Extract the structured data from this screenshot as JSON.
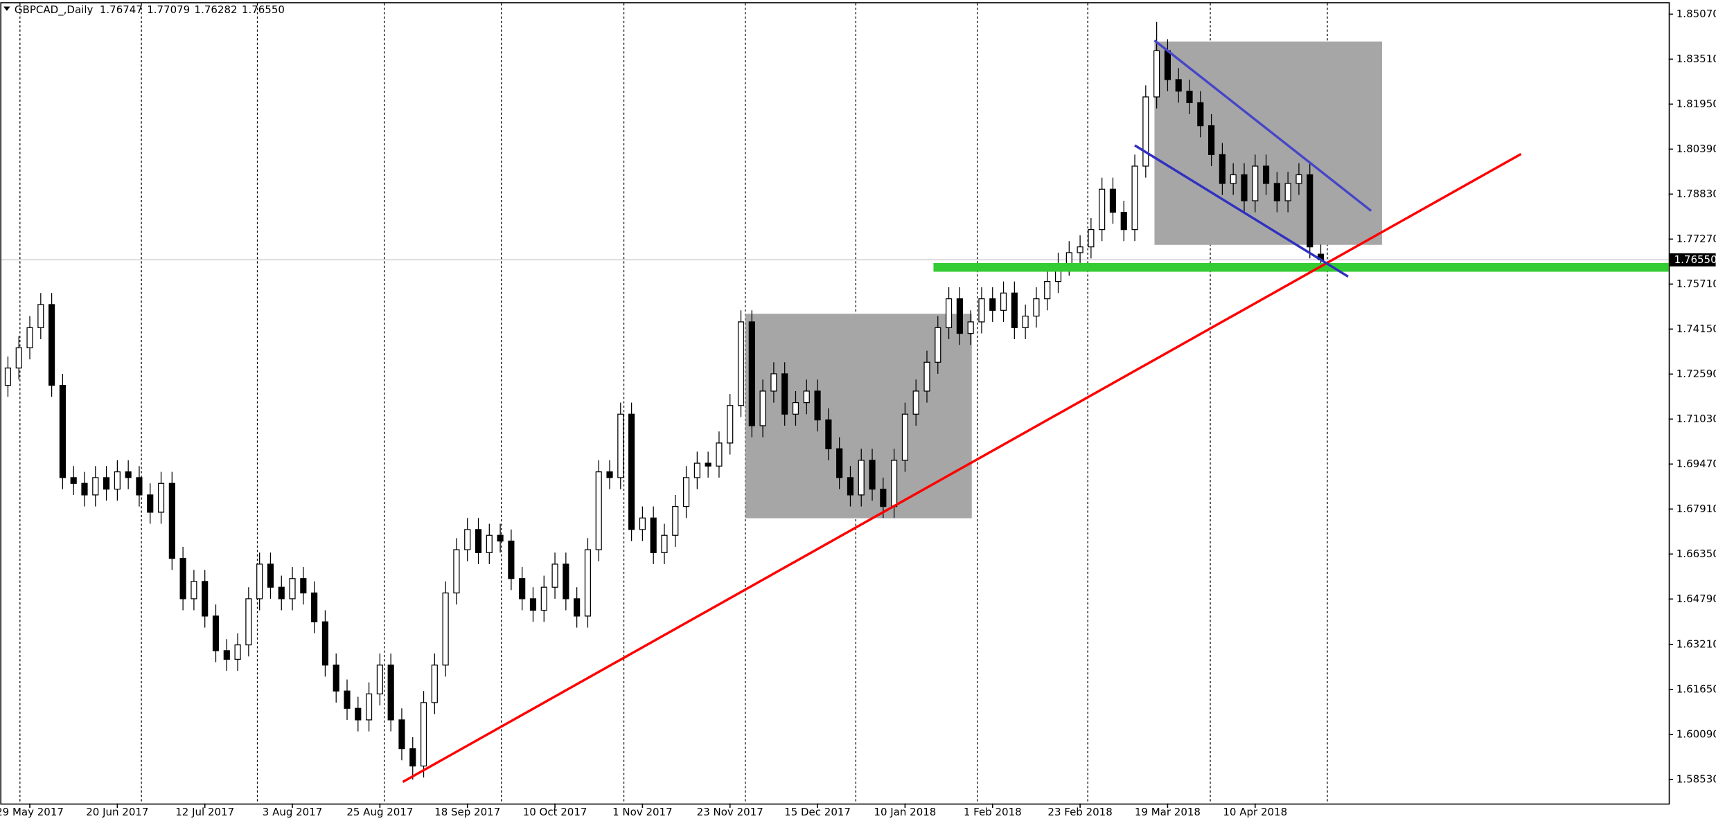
{
  "chart_data": {
    "type": "candlestick",
    "title": "GBPCAD_,Daily",
    "last_price": {
      "value": 1.7655,
      "label": "1.76550"
    },
    "ylim": [
      1.577,
      1.8556
    ],
    "yticks": [
      {
        "value": 1.8507,
        "label": "1.85070"
      },
      {
        "value": 1.8351,
        "label": "1.83510"
      },
      {
        "value": 1.8195,
        "label": "1.81950"
      },
      {
        "value": 1.8039,
        "label": "1.80390"
      },
      {
        "value": 1.7883,
        "label": "1.78830"
      },
      {
        "value": 1.7727,
        "label": "1.77270"
      },
      {
        "value": 1.7571,
        "label": "1.75710"
      },
      {
        "value": 1.7415,
        "label": "1.74150"
      },
      {
        "value": 1.7259,
        "label": "1.72590"
      },
      {
        "value": 1.7103,
        "label": "1.71030"
      },
      {
        "value": 1.6947,
        "label": "1.69470"
      },
      {
        "value": 1.6791,
        "label": "1.67910"
      },
      {
        "value": 1.6635,
        "label": "1.66350"
      },
      {
        "value": 1.6479,
        "label": "1.64790"
      },
      {
        "value": 1.6321,
        "label": "1.63210"
      },
      {
        "value": 1.6165,
        "label": "1.61650"
      },
      {
        "value": 1.6009,
        "label": "1.60090"
      },
      {
        "value": 1.5853,
        "label": "1.58530"
      }
    ],
    "categories": [
      null,
      null,
      "29 May 2017",
      null,
      null,
      null,
      null,
      null,
      null,
      null,
      "20 Jun 2017",
      null,
      null,
      null,
      null,
      null,
      null,
      null,
      "12 Jul 2017",
      null,
      null,
      null,
      null,
      null,
      null,
      null,
      "3 Aug 2017",
      null,
      null,
      null,
      null,
      null,
      null,
      null,
      "25 Aug 2017",
      null,
      null,
      null,
      null,
      null,
      null,
      null,
      "18 Sep 2017",
      null,
      null,
      null,
      null,
      null,
      null,
      null,
      "10 Oct 2017",
      null,
      null,
      null,
      null,
      null,
      null,
      null,
      "1 Nov 2017",
      null,
      null,
      null,
      null,
      null,
      null,
      null,
      "23 Nov 2017",
      null,
      null,
      null,
      null,
      null,
      null,
      null,
      "15 Dec 2017",
      null,
      null,
      null,
      null,
      null,
      null,
      null,
      "10 Jan 2018",
      null,
      null,
      null,
      null,
      null,
      null,
      null,
      "1 Feb 2018",
      null,
      null,
      null,
      null,
      null,
      null,
      null,
      "23 Feb 2018",
      null,
      null,
      null,
      null,
      null,
      null,
      null,
      "19 Mar 2018",
      null,
      null,
      null,
      null,
      null,
      null,
      null,
      "10 Apr 2018",
      null,
      null,
      null,
      null,
      null,
      null
    ],
    "open": [
      1.722,
      1.728,
      1.735,
      1.742,
      1.75,
      1.722,
      1.69,
      1.688,
      1.684,
      1.69,
      1.686,
      1.692,
      1.69,
      1.684,
      1.678,
      1.688,
      1.662,
      1.648,
      1.654,
      1.642,
      1.63,
      1.627,
      1.632,
      1.648,
      1.66,
      1.652,
      1.648,
      1.655,
      1.65,
      1.64,
      1.625,
      1.616,
      1.61,
      1.606,
      1.615,
      1.625,
      1.606,
      1.596,
      1.59,
      1.612,
      1.625,
      1.65,
      1.665,
      1.672,
      1.664,
      1.67,
      1.668,
      1.655,
      1.648,
      1.644,
      1.652,
      1.66,
      1.648,
      1.642,
      1.665,
      1.692,
      1.69,
      1.712,
      1.672,
      1.676,
      1.664,
      1.67,
      1.68,
      1.69,
      1.695,
      1.694,
      1.702,
      1.715,
      1.744,
      1.708,
      1.72,
      1.726,
      1.712,
      1.716,
      1.72,
      1.71,
      1.7,
      1.69,
      1.684,
      1.696,
      1.686,
      1.68,
      1.696,
      1.712,
      1.72,
      1.73,
      1.742,
      1.752,
      1.74,
      1.744,
      1.752,
      1.748,
      1.754,
      1.742,
      1.746,
      1.752,
      1.758,
      1.764,
      1.768,
      1.77,
      1.776,
      1.79,
      1.782,
      1.776,
      1.798,
      1.822,
      1.838,
      1.828,
      1.824,
      1.82,
      1.812,
      1.802,
      1.792,
      1.795,
      1.786,
      1.798,
      1.792,
      1.786,
      1.792,
      1.795,
      1.76747
    ],
    "high": [
      1.732,
      1.739,
      1.746,
      1.754,
      1.754,
      1.726,
      1.694,
      1.692,
      1.694,
      1.694,
      1.696,
      1.696,
      1.694,
      1.688,
      1.692,
      1.692,
      1.666,
      1.658,
      1.658,
      1.646,
      1.634,
      1.636,
      1.652,
      1.664,
      1.664,
      1.656,
      1.659,
      1.659,
      1.654,
      1.644,
      1.629,
      1.62,
      1.614,
      1.619,
      1.629,
      1.629,
      1.61,
      1.6,
      1.616,
      1.629,
      1.654,
      1.669,
      1.676,
      1.676,
      1.674,
      1.674,
      1.672,
      1.659,
      1.652,
      1.656,
      1.664,
      1.664,
      1.652,
      1.669,
      1.696,
      1.696,
      1.716,
      1.716,
      1.68,
      1.68,
      1.674,
      1.684,
      1.694,
      1.699,
      1.699,
      1.706,
      1.719,
      1.748,
      1.748,
      1.724,
      1.73,
      1.73,
      1.72,
      1.724,
      1.724,
      1.714,
      1.704,
      1.694,
      1.7,
      1.7,
      1.69,
      1.7,
      1.716,
      1.724,
      1.734,
      1.746,
      1.756,
      1.756,
      1.748,
      1.756,
      1.756,
      1.758,
      1.758,
      1.75,
      1.756,
      1.762,
      1.768,
      1.772,
      1.774,
      1.78,
      1.794,
      1.794,
      1.786,
      1.802,
      1.826,
      1.848,
      1.842,
      1.832,
      1.828,
      1.824,
      1.816,
      1.806,
      1.799,
      1.799,
      1.802,
      1.802,
      1.796,
      1.796,
      1.799,
      1.799,
      1.77079
    ],
    "low": [
      1.718,
      1.724,
      1.731,
      1.738,
      1.718,
      1.686,
      1.684,
      1.68,
      1.68,
      1.682,
      1.682,
      1.686,
      1.68,
      1.674,
      1.674,
      1.658,
      1.644,
      1.644,
      1.638,
      1.626,
      1.623,
      1.623,
      1.628,
      1.644,
      1.648,
      1.644,
      1.644,
      1.646,
      1.636,
      1.621,
      1.612,
      1.606,
      1.602,
      1.602,
      1.611,
      1.602,
      1.592,
      1.5853,
      1.586,
      1.608,
      1.621,
      1.646,
      1.661,
      1.66,
      1.66,
      1.664,
      1.651,
      1.644,
      1.64,
      1.64,
      1.648,
      1.644,
      1.638,
      1.638,
      1.661,
      1.686,
      1.686,
      1.668,
      1.668,
      1.66,
      1.66,
      1.666,
      1.676,
      1.686,
      1.69,
      1.69,
      1.698,
      1.711,
      1.704,
      1.704,
      1.716,
      1.708,
      1.708,
      1.712,
      1.706,
      1.696,
      1.686,
      1.68,
      1.68,
      1.682,
      1.676,
      1.676,
      1.692,
      1.708,
      1.716,
      1.726,
      1.738,
      1.736,
      1.736,
      1.74,
      1.744,
      1.744,
      1.738,
      1.738,
      1.742,
      1.748,
      1.754,
      1.76,
      1.764,
      1.766,
      1.772,
      1.778,
      1.772,
      1.772,
      1.794,
      1.818,
      1.824,
      1.82,
      1.816,
      1.808,
      1.798,
      1.788,
      1.788,
      1.782,
      1.782,
      1.788,
      1.782,
      1.782,
      1.788,
      1.766,
      1.76282
    ],
    "close": [
      1.728,
      1.735,
      1.742,
      1.75,
      1.722,
      1.69,
      1.688,
      1.684,
      1.69,
      1.686,
      1.692,
      1.69,
      1.684,
      1.678,
      1.688,
      1.662,
      1.648,
      1.654,
      1.642,
      1.63,
      1.627,
      1.632,
      1.648,
      1.66,
      1.652,
      1.648,
      1.655,
      1.65,
      1.64,
      1.625,
      1.616,
      1.61,
      1.606,
      1.615,
      1.625,
      1.606,
      1.596,
      1.59,
      1.612,
      1.625,
      1.65,
      1.665,
      1.672,
      1.664,
      1.67,
      1.668,
      1.655,
      1.648,
      1.644,
      1.652,
      1.66,
      1.648,
      1.642,
      1.665,
      1.692,
      1.69,
      1.712,
      1.672,
      1.676,
      1.664,
      1.67,
      1.68,
      1.69,
      1.695,
      1.694,
      1.702,
      1.715,
      1.744,
      1.708,
      1.72,
      1.726,
      1.712,
      1.716,
      1.72,
      1.71,
      1.7,
      1.69,
      1.684,
      1.696,
      1.686,
      1.68,
      1.696,
      1.712,
      1.72,
      1.73,
      1.742,
      1.752,
      1.74,
      1.744,
      1.752,
      1.748,
      1.754,
      1.742,
      1.746,
      1.752,
      1.758,
      1.764,
      1.768,
      1.77,
      1.776,
      1.79,
      1.782,
      1.776,
      1.798,
      1.822,
      1.838,
      1.828,
      1.824,
      1.82,
      1.812,
      1.802,
      1.792,
      1.795,
      1.786,
      1.798,
      1.792,
      1.786,
      1.792,
      1.795,
      1.77,
      1.7655
    ],
    "zones": [
      {
        "color": "#a6a6a6",
        "x": [
          67.4,
          88.1
        ],
        "y": [
          1.6759,
          1.7468
        ]
      },
      {
        "color": "#a6a6a6",
        "x": [
          104.8,
          125.6
        ],
        "y": [
          1.7707,
          1.8412
        ]
      }
    ],
    "levels": [
      {
        "color": "#33cc33",
        "value": 1.7629,
        "from": 84.6
      }
    ],
    "lines": [
      {
        "color": "#ff0000",
        "x": [
          36.1,
          138.3
        ],
        "y": [
          1.5845,
          1.8022
        ]
      },
      {
        "color": "#4646c8",
        "x": [
          104.8,
          124.6
        ],
        "y": [
          1.8416,
          1.7825
        ]
      },
      {
        "color": "#3030c0",
        "x": [
          103,
          122.5
        ],
        "y": [
          1.8052,
          1.7597
        ]
      }
    ]
  }
}
